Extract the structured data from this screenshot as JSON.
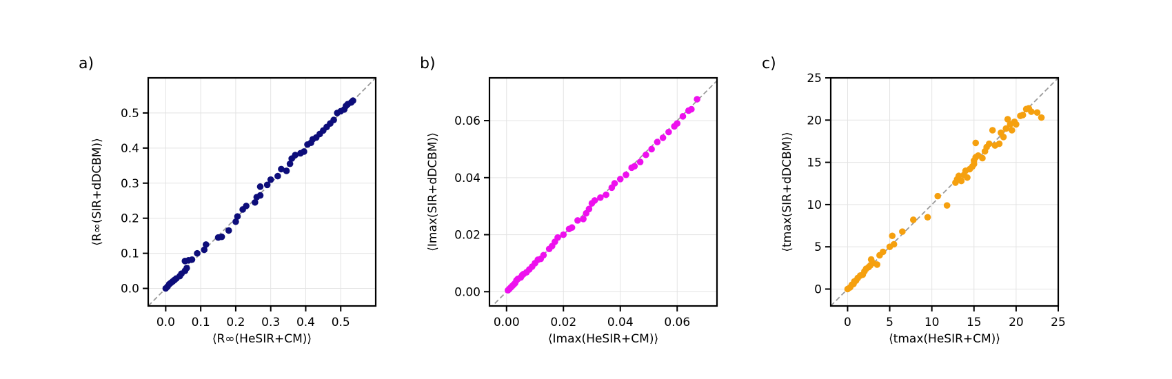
{
  "colors": {
    "panel_a": "#0d0d7a",
    "panel_b": "#ee10ee",
    "panel_c": "#f5a00f",
    "diagonal": "#9a9a9a",
    "grid": "#e3e3e3"
  },
  "chart_data": [
    {
      "type": "scatter",
      "panel_label": "a)",
      "xlabel": "⟨R∞(HeSIR+CM)⟩",
      "ylabel": "⟨R∞(SIR+dDCBM)⟩",
      "xlim": [
        -0.05,
        0.6
      ],
      "ylim": [
        -0.05,
        0.6
      ],
      "xticks": [
        0.0,
        0.1,
        0.2,
        0.3,
        0.4,
        0.5
      ],
      "yticks": [
        0.0,
        0.1,
        0.2,
        0.3,
        0.4,
        0.5
      ],
      "xtick_labels": [
        "0.0",
        "0.1",
        "0.2",
        "0.3",
        "0.4",
        "0.5"
      ],
      "ytick_labels": [
        "0.0",
        "0.1",
        "0.2",
        "0.3",
        "0.4",
        "0.5"
      ],
      "grid": true,
      "diagonal": true,
      "points": [
        [
          0.0,
          0.0
        ],
        [
          0.005,
          0.005
        ],
        [
          0.01,
          0.012
        ],
        [
          0.015,
          0.016
        ],
        [
          0.02,
          0.02
        ],
        [
          0.025,
          0.024
        ],
        [
          0.03,
          0.028
        ],
        [
          0.04,
          0.035
        ],
        [
          0.045,
          0.042
        ],
        [
          0.055,
          0.05
        ],
        [
          0.06,
          0.058
        ],
        [
          0.055,
          0.078
        ],
        [
          0.065,
          0.08
        ],
        [
          0.075,
          0.082
        ],
        [
          0.09,
          0.1
        ],
        [
          0.11,
          0.11
        ],
        [
          0.115,
          0.125
        ],
        [
          0.15,
          0.145
        ],
        [
          0.16,
          0.147
        ],
        [
          0.18,
          0.165
        ],
        [
          0.2,
          0.19
        ],
        [
          0.205,
          0.205
        ],
        [
          0.22,
          0.225
        ],
        [
          0.23,
          0.235
        ],
        [
          0.255,
          0.245
        ],
        [
          0.26,
          0.26
        ],
        [
          0.27,
          0.265
        ],
        [
          0.27,
          0.29
        ],
        [
          0.29,
          0.295
        ],
        [
          0.3,
          0.31
        ],
        [
          0.32,
          0.32
        ],
        [
          0.33,
          0.34
        ],
        [
          0.345,
          0.335
        ],
        [
          0.355,
          0.355
        ],
        [
          0.36,
          0.37
        ],
        [
          0.37,
          0.38
        ],
        [
          0.385,
          0.385
        ],
        [
          0.395,
          0.39
        ],
        [
          0.405,
          0.41
        ],
        [
          0.415,
          0.415
        ],
        [
          0.42,
          0.425
        ],
        [
          0.43,
          0.43
        ],
        [
          0.44,
          0.44
        ],
        [
          0.45,
          0.45
        ],
        [
          0.46,
          0.46
        ],
        [
          0.47,
          0.47
        ],
        [
          0.48,
          0.48
        ],
        [
          0.49,
          0.5
        ],
        [
          0.5,
          0.505
        ],
        [
          0.51,
          0.51
        ],
        [
          0.515,
          0.52
        ],
        [
          0.52,
          0.525
        ],
        [
          0.53,
          0.53
        ],
        [
          0.535,
          0.535
        ]
      ]
    },
    {
      "type": "scatter",
      "panel_label": "b)",
      "xlabel": "⟨Imax(HeSIR+CM)⟩",
      "ylabel": "⟨Imax(SIR+dDCBM)⟩",
      "xlim": [
        -0.006,
        0.074
      ],
      "ylim": [
        -0.005,
        0.075
      ],
      "xticks": [
        0.0,
        0.02,
        0.04,
        0.06
      ],
      "yticks": [
        0.0,
        0.02,
        0.04,
        0.06
      ],
      "xtick_labels": [
        "0.00",
        "0.02",
        "0.04",
        "0.06"
      ],
      "ytick_labels": [
        "0.00",
        "0.02",
        "0.04",
        "0.06"
      ],
      "grid": true,
      "diagonal": true,
      "points": [
        [
          0.0005,
          0.0005
        ],
        [
          0.001,
          0.001
        ],
        [
          0.0015,
          0.0015
        ],
        [
          0.002,
          0.002
        ],
        [
          0.0025,
          0.0025
        ],
        [
          0.003,
          0.003
        ],
        [
          0.0035,
          0.004
        ],
        [
          0.004,
          0.0045
        ],
        [
          0.005,
          0.005
        ],
        [
          0.0055,
          0.0058
        ],
        [
          0.006,
          0.0062
        ],
        [
          0.007,
          0.0068
        ],
        [
          0.008,
          0.0078
        ],
        [
          0.009,
          0.0088
        ],
        [
          0.01,
          0.01
        ],
        [
          0.011,
          0.0112
        ],
        [
          0.012,
          0.0115
        ],
        [
          0.013,
          0.0128
        ],
        [
          0.015,
          0.015
        ],
        [
          0.016,
          0.016
        ],
        [
          0.017,
          0.0175
        ],
        [
          0.018,
          0.019
        ],
        [
          0.02,
          0.02
        ],
        [
          0.022,
          0.022
        ],
        [
          0.023,
          0.0225
        ],
        [
          0.025,
          0.025
        ],
        [
          0.027,
          0.0255
        ],
        [
          0.028,
          0.0275
        ],
        [
          0.029,
          0.029
        ],
        [
          0.03,
          0.031
        ],
        [
          0.031,
          0.032
        ],
        [
          0.033,
          0.033
        ],
        [
          0.035,
          0.034
        ],
        [
          0.037,
          0.0365
        ],
        [
          0.038,
          0.038
        ],
        [
          0.04,
          0.0395
        ],
        [
          0.042,
          0.041
        ],
        [
          0.044,
          0.0435
        ],
        [
          0.045,
          0.044
        ],
        [
          0.047,
          0.0455
        ],
        [
          0.049,
          0.048
        ],
        [
          0.051,
          0.05
        ],
        [
          0.053,
          0.0525
        ],
        [
          0.055,
          0.054
        ],
        [
          0.057,
          0.056
        ],
        [
          0.059,
          0.058
        ],
        [
          0.06,
          0.059
        ],
        [
          0.062,
          0.0615
        ],
        [
          0.064,
          0.0635
        ],
        [
          0.065,
          0.064
        ],
        [
          0.067,
          0.0675
        ]
      ]
    },
    {
      "type": "scatter",
      "panel_label": "c)",
      "xlabel": "⟨tmax(HeSIR+CM)⟩",
      "ylabel": "⟨tmax(SIR+dDCBM)⟩",
      "xlim": [
        -2,
        25
      ],
      "ylim": [
        -2,
        25
      ],
      "xticks": [
        0,
        5,
        10,
        15,
        20,
        25
      ],
      "yticks": [
        0,
        5,
        10,
        15,
        20,
        25
      ],
      "xtick_labels": [
        "0",
        "5",
        "10",
        "15",
        "20",
        "25"
      ],
      "ytick_labels": [
        "0",
        "5",
        "10",
        "15",
        "20",
        "25"
      ],
      "grid": true,
      "diagonal": true,
      "points": [
        [
          0,
          0
        ],
        [
          0.3,
          0.2
        ],
        [
          0.5,
          0.5
        ],
        [
          0.7,
          0.6
        ],
        [
          0.8,
          0.9
        ],
        [
          1,
          1
        ],
        [
          1.2,
          1.3
        ],
        [
          1.5,
          1.6
        ],
        [
          1.8,
          1.7
        ],
        [
          2,
          2.1
        ],
        [
          2.2,
          2.4
        ],
        [
          2.5,
          2.6
        ],
        [
          2.7,
          2.8
        ],
        [
          2.8,
          3.5
        ],
        [
          3,
          3.1
        ],
        [
          3.5,
          2.9
        ],
        [
          3.8,
          4
        ],
        [
          4.2,
          4.4
        ],
        [
          5,
          5
        ],
        [
          5.3,
          6.3
        ],
        [
          5.5,
          5.3
        ],
        [
          6.5,
          6.8
        ],
        [
          7.8,
          8.2
        ],
        [
          9.5,
          8.5
        ],
        [
          10.7,
          11
        ],
        [
          11.8,
          9.9
        ],
        [
          12.8,
          12.6
        ],
        [
          13,
          13
        ],
        [
          13.2,
          13.4
        ],
        [
          13.5,
          12.8
        ],
        [
          13.8,
          13.5
        ],
        [
          14,
          14
        ],
        [
          14.2,
          13.2
        ],
        [
          14.5,
          14.2
        ],
        [
          14.8,
          14.5
        ],
        [
          15,
          14.8
        ],
        [
          15,
          15.2
        ],
        [
          15.2,
          15.6
        ],
        [
          15.2,
          17.3
        ],
        [
          15.5,
          15.8
        ],
        [
          16,
          15.5
        ],
        [
          16.3,
          16.3
        ],
        [
          16.5,
          16.8
        ],
        [
          16.8,
          17.2
        ],
        [
          17.2,
          18.8
        ],
        [
          17.5,
          17
        ],
        [
          18,
          17.2
        ],
        [
          18.2,
          18.5
        ],
        [
          18.5,
          18
        ],
        [
          18.8,
          19
        ],
        [
          19,
          20.1
        ],
        [
          19.3,
          19.5
        ],
        [
          19.5,
          18.8
        ],
        [
          19.8,
          19.8
        ],
        [
          20,
          19.5
        ],
        [
          20.5,
          20.5
        ],
        [
          20.8,
          20.6
        ],
        [
          21.2,
          21.3
        ],
        [
          21.5,
          21.4
        ],
        [
          21.8,
          21
        ],
        [
          22.5,
          20.9
        ],
        [
          23,
          20.3
        ]
      ]
    }
  ]
}
